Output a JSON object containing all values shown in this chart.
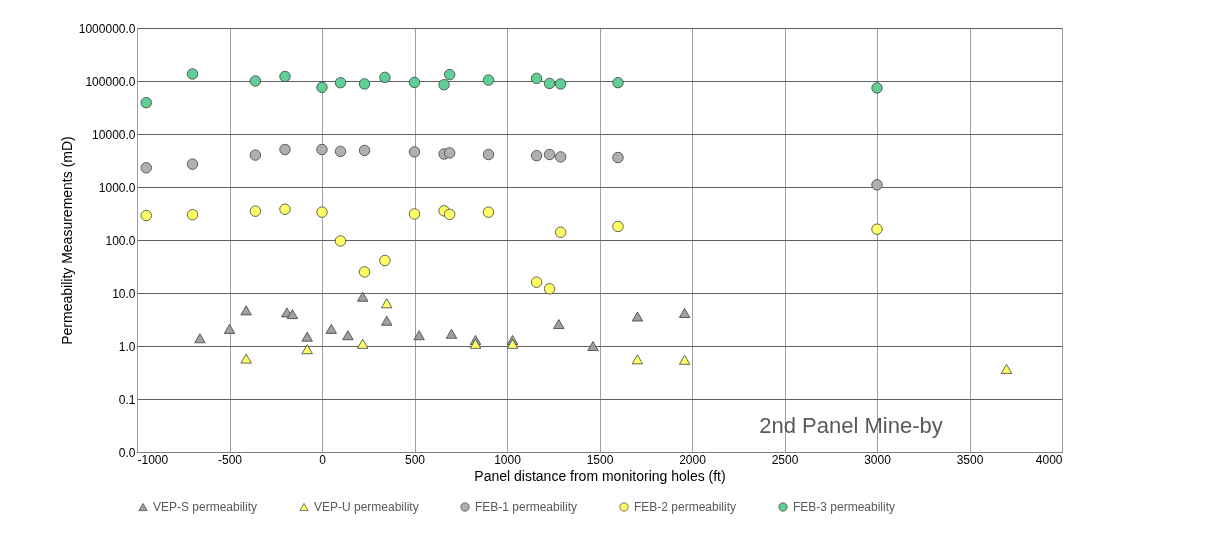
{
  "chart_data": {
    "type": "scatter",
    "xlabel": "Panel distance from monitoring holes (ft)",
    "ylabel": "Permeability Measurements (mD)",
    "log": "y",
    "grid": true,
    "legend": "bottom",
    "xlim": [
      -1000,
      4000
    ],
    "xticks": [
      -1000,
      -500,
      0,
      500,
      1000,
      1500,
      2000,
      2500,
      3000,
      3500,
      4000
    ],
    "ylim": [
      0.01,
      1000000
    ],
    "yticks": [
      {
        "value": 0.01,
        "label": "0.0"
      },
      {
        "value": 0.1,
        "label": "0.1"
      },
      {
        "value": 1,
        "label": "1.0"
      },
      {
        "value": 10,
        "label": "10.0"
      },
      {
        "value": 100,
        "label": "100.0"
      },
      {
        "value": 1000,
        "label": "1000.0"
      },
      {
        "value": 10000,
        "label": "10000.0"
      },
      {
        "value": 100000,
        "label": "100000.0"
      },
      {
        "value": 1000000,
        "label": "1000000.0"
      }
    ],
    "annotations": [
      "2nd Panel Mine-by"
    ],
    "series": [
      {
        "name": "VEP-S permeability",
        "color": "#a0a0a0",
        "marker": "triangle",
        "x": [
          -660,
          -500,
          -410,
          -190,
          -160,
          -80,
          50,
          140,
          220,
          350,
          525,
          700,
          830,
          1030,
          1280,
          1465,
          1705,
          1960
        ],
        "values": [
          1.4,
          2.1,
          4.7,
          4.3,
          4.0,
          1.5,
          2.1,
          1.6,
          8.5,
          3.0,
          1.6,
          1.7,
          1.3,
          1.3,
          2.6,
          1.0,
          3.6,
          4.2
        ]
      },
      {
        "name": "VEP-U permeability",
        "color": "#ffff66",
        "marker": "triangle",
        "x": [
          -410,
          -80,
          220,
          350,
          830,
          1030,
          1705,
          1960,
          3700
        ],
        "values": [
          0.58,
          0.87,
          1.1,
          6.4,
          1.1,
          1.1,
          0.56,
          0.55,
          0.37
        ]
      },
      {
        "name": "FEB-1 permeability",
        "color": "#b0b0b0",
        "marker": "circle",
        "x": [
          -950,
          -700,
          -360,
          -200,
          0,
          100,
          230,
          500,
          660,
          690,
          900,
          1160,
          1230,
          1290,
          1600,
          3000
        ],
        "values": [
          2300,
          2700,
          4000,
          5100,
          5100,
          4700,
          4900,
          4600,
          4200,
          4400,
          4100,
          3900,
          4100,
          3700,
          3600,
          1100
        ]
      },
      {
        "name": "FEB-2 permeability",
        "color": "#ffff66",
        "marker": "circle",
        "x": [
          -950,
          -700,
          -360,
          -200,
          0,
          100,
          230,
          340,
          500,
          660,
          690,
          900,
          1160,
          1230,
          1290,
          1600,
          3000
        ],
        "values": [
          290,
          300,
          350,
          380,
          335,
          96,
          25,
          41,
          310,
          355,
          305,
          335,
          16,
          12,
          140,
          180,
          160
        ]
      },
      {
        "name": "FEB-3 permeability",
        "color": "#5fcf95",
        "marker": "circle",
        "x": [
          -950,
          -700,
          -360,
          -200,
          0,
          100,
          230,
          340,
          500,
          660,
          690,
          900,
          1160,
          1230,
          1290,
          1600,
          3000
        ],
        "values": [
          39000,
          136000,
          100000,
          122000,
          76000,
          93000,
          88000,
          117000,
          94000,
          85000,
          132000,
          104000,
          112000,
          90000,
          88000,
          93000,
          74000
        ]
      }
    ]
  }
}
